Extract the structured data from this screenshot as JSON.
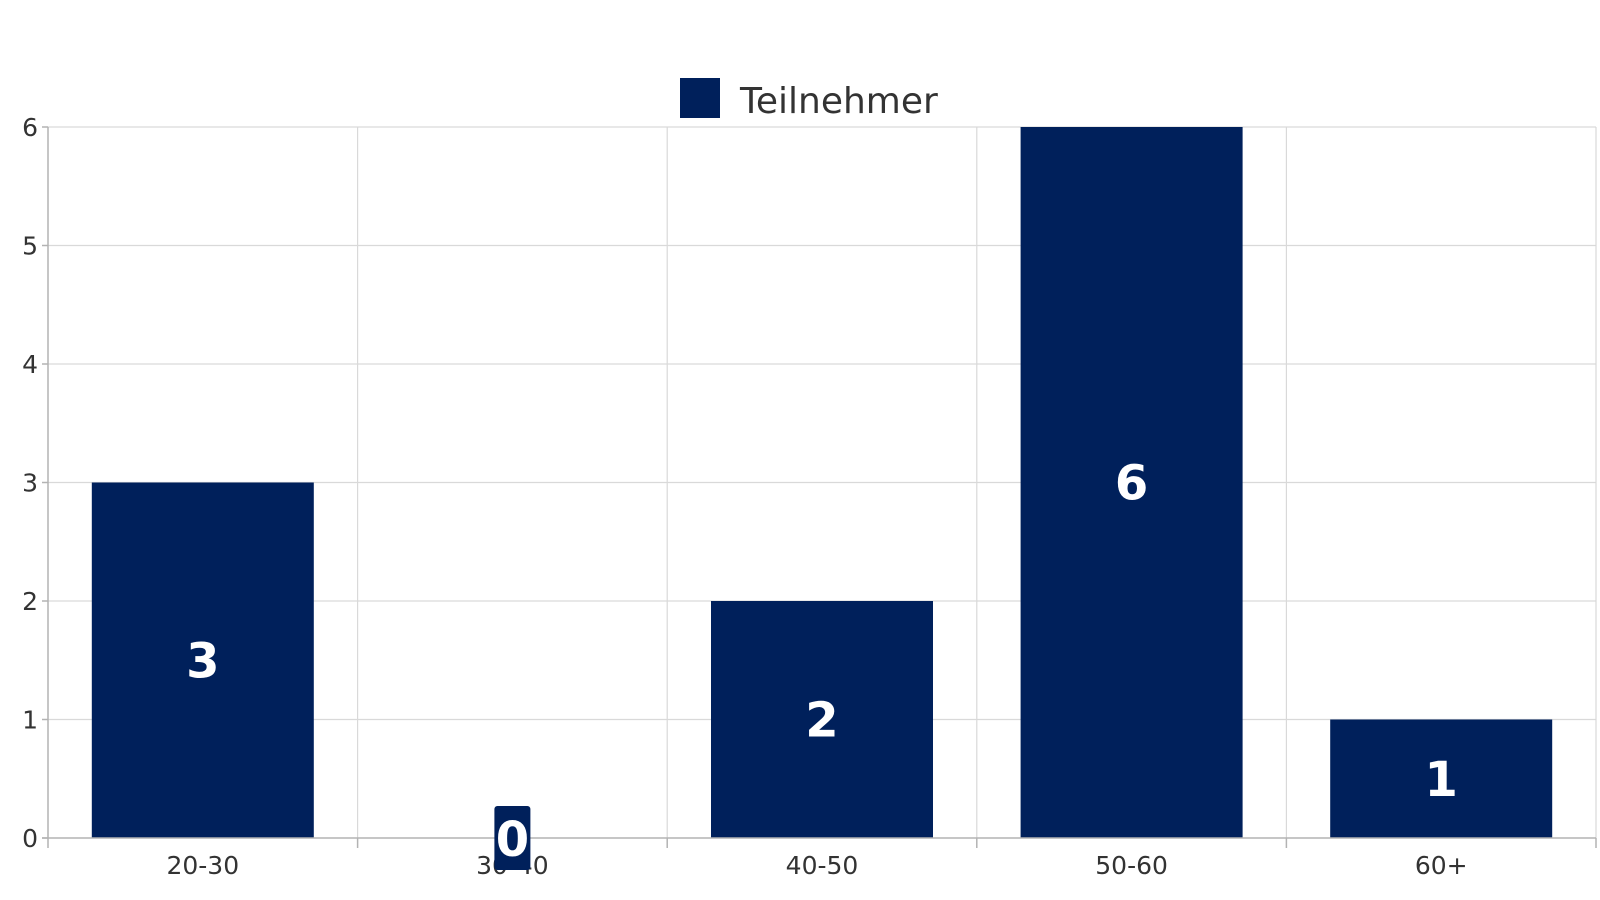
{
  "chart_data": {
    "type": "bar",
    "categories": [
      "20-30",
      "30-40",
      "40-50",
      "50-60",
      "60+"
    ],
    "series": [
      {
        "name": "Teilnehmer",
        "values": [
          3,
          0,
          2,
          6,
          1
        ],
        "color": "#00205b"
      }
    ],
    "title": "",
    "xlabel": "",
    "ylabel": "",
    "ylim": [
      0,
      6
    ],
    "yticks": [
      "0",
      "1",
      "2",
      "3",
      "4",
      "5",
      "6"
    ],
    "data_labels": [
      "3",
      "0",
      "2",
      "6",
      "1"
    ],
    "grid": true,
    "grid_color": "#d9d9d9",
    "axis_color": "#b3b3b3",
    "legend_position": "top-center"
  }
}
